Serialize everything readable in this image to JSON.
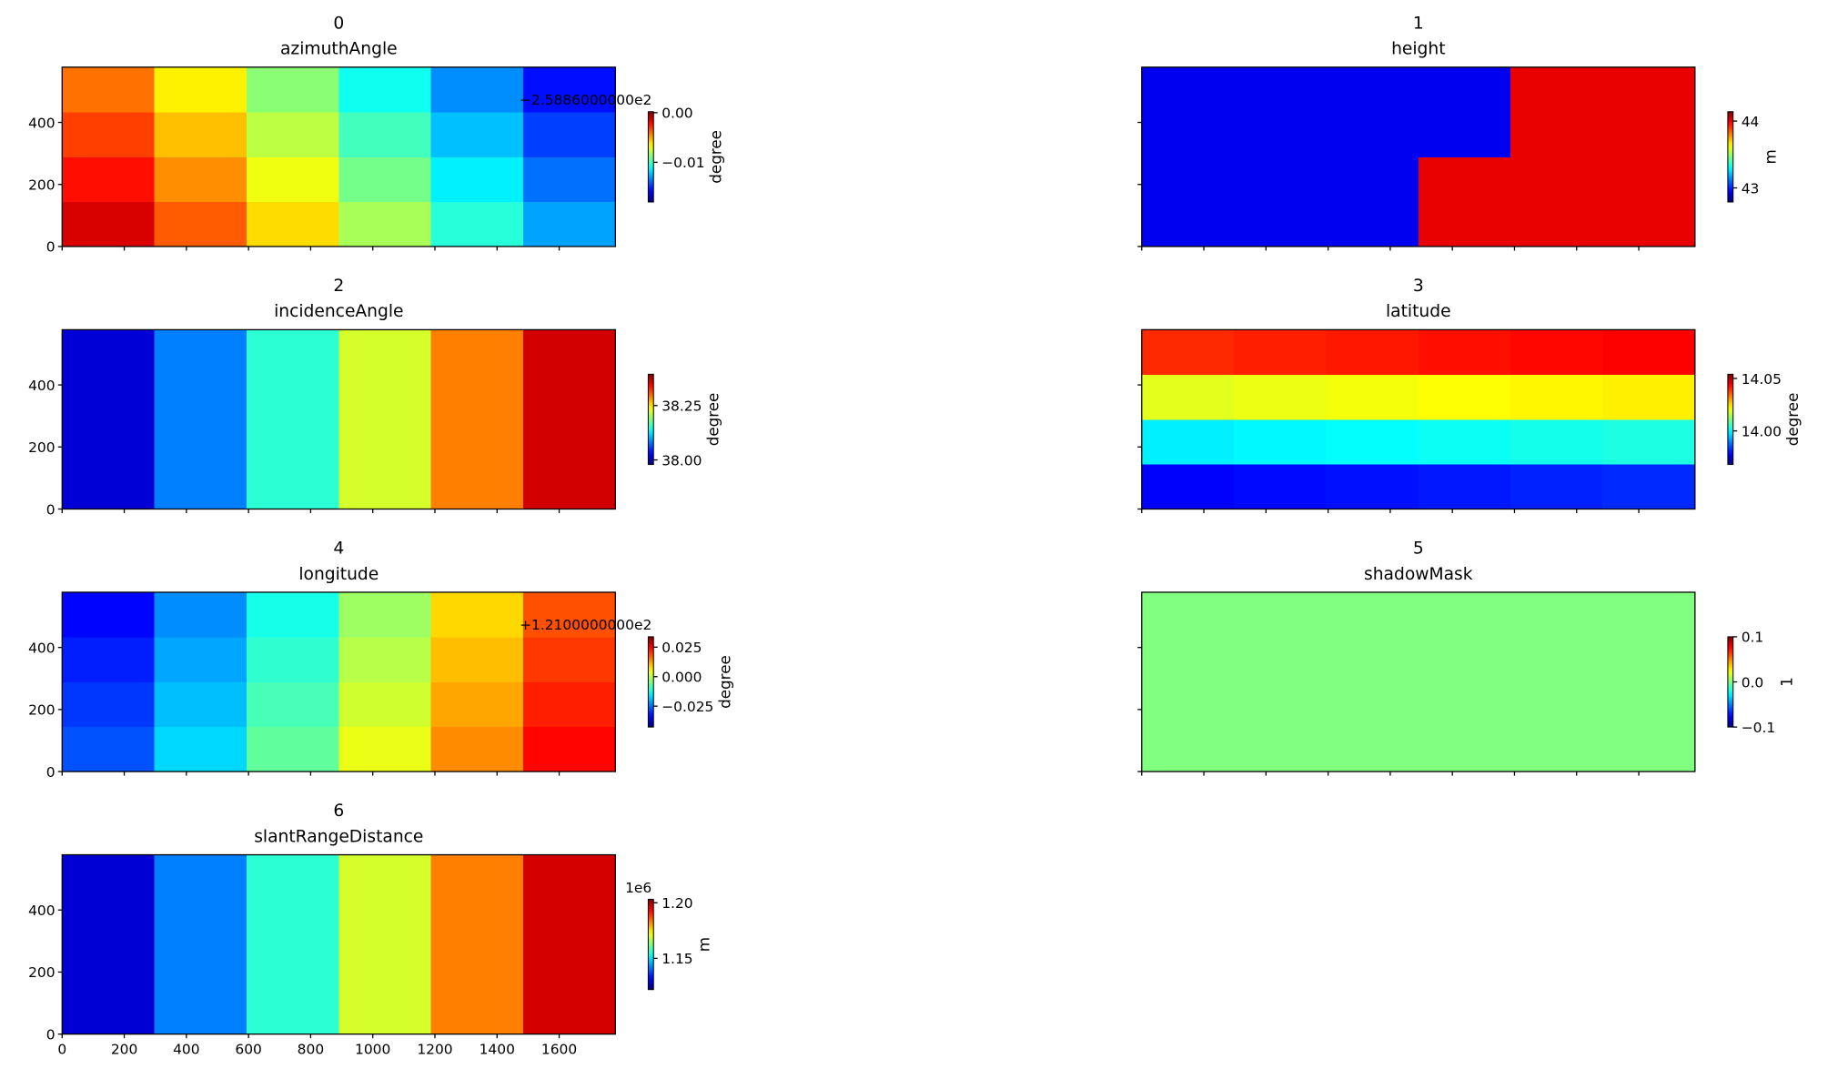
{
  "chart_data": [
    {
      "type": "heatmap",
      "title": "0",
      "subtitle": "azimuthAngle",
      "colormap": "jet",
      "origin": "lower",
      "xlim": [
        0,
        1781
      ],
      "ylim": [
        0,
        578
      ],
      "xticks": [
        0,
        200,
        400,
        600,
        800,
        1000,
        1200,
        1400,
        1600
      ],
      "yticks": [
        0,
        200,
        400
      ],
      "show_xtick_labels": false,
      "show_ytick_labels": true,
      "clim": [
        -0.018,
        0.0002
      ],
      "cticks": [
        {
          "value": 0,
          "label": "0.00"
        },
        {
          "value": -0.01,
          "label": "−0.01"
        }
      ],
      "colorbar_label": "degree",
      "offset_text": "−2.5886000000e2",
      "z": [
        [
          -0.0014,
          -0.0037,
          -0.006,
          -0.0082,
          -0.0105,
          -0.0128
        ],
        [
          -0.0023,
          -0.0046,
          -0.0069,
          -0.0091,
          -0.0114,
          -0.0137
        ],
        [
          -0.0032,
          -0.0055,
          -0.0078,
          -0.01,
          -0.0123,
          -0.0146
        ],
        [
          -0.0041,
          -0.0064,
          -0.0087,
          -0.0109,
          -0.0132,
          -0.0155
        ]
      ]
    },
    {
      "type": "heatmap",
      "title": "1",
      "subtitle": "height",
      "colormap": "jet",
      "origin": "lower",
      "xlim": [
        0,
        1781
      ],
      "ylim": [
        0,
        578
      ],
      "xticks": [
        0,
        200,
        400,
        600,
        800,
        1000,
        1200,
        1400,
        1600
      ],
      "yticks": [
        0,
        200,
        400
      ],
      "show_xtick_labels": false,
      "show_ytick_labels": false,
      "clim": [
        42.79,
        44.14
      ],
      "cticks": [
        44,
        43
      ],
      "colorbar_label": "m",
      "z": [
        [
          42.94,
          42.94,
          42.94,
          44.0,
          44.0,
          44.0
        ],
        [
          42.94,
          42.94,
          42.94,
          44.0,
          44.0,
          44.0
        ],
        [
          42.94,
          42.94,
          42.94,
          42.94,
          44.0,
          44.0
        ],
        [
          42.94,
          42.94,
          42.94,
          42.94,
          44.0,
          44.0
        ]
      ]
    },
    {
      "type": "heatmap",
      "title": "2",
      "subtitle": "incidenceAngle",
      "colormap": "jet",
      "origin": "lower",
      "xlim": [
        0,
        1781
      ],
      "ylim": [
        0,
        578
      ],
      "xticks": [
        0,
        200,
        400,
        600,
        800,
        1000,
        1200,
        1400,
        1600
      ],
      "yticks": [
        0,
        200,
        400
      ],
      "show_xtick_labels": false,
      "show_ytick_labels": true,
      "clim": [
        37.979,
        38.394
      ],
      "cticks": [
        38.25,
        {
          "value": 38,
          "label": "38.00"
        }
      ],
      "colorbar_label": "degree",
      "z": [
        [
          38.014,
          38.083,
          38.152,
          38.221,
          38.29,
          38.36
        ],
        [
          38.014,
          38.083,
          38.152,
          38.221,
          38.29,
          38.36
        ],
        [
          38.014,
          38.083,
          38.152,
          38.221,
          38.29,
          38.36
        ],
        [
          38.014,
          38.083,
          38.152,
          38.221,
          38.29,
          38.36
        ]
      ]
    },
    {
      "type": "heatmap",
      "title": "3",
      "subtitle": "latitude",
      "colormap": "jet",
      "origin": "lower",
      "xlim": [
        0,
        1781
      ],
      "ylim": [
        0,
        578
      ],
      "xticks": [
        0,
        200,
        400,
        600,
        800,
        1000,
        1200,
        1400,
        1600
      ],
      "yticks": [
        0,
        200,
        400
      ],
      "show_xtick_labels": false,
      "show_ytick_labels": false,
      "clim": [
        13.968,
        14.054
      ],
      "cticks": [
        14.05,
        {
          "value": 14,
          "label": "14.00"
        }
      ],
      "colorbar_label": "degree",
      "z": [
        [
          13.9786,
          13.9794,
          13.98,
          13.9807,
          13.9815,
          13.9822
        ],
        [
          13.999,
          13.9997,
          14.0004,
          14.0011,
          14.0019,
          14.0026
        ],
        [
          14.0194,
          14.0202,
          14.0209,
          14.0216,
          14.0224,
          14.023
        ],
        [
          14.0398,
          14.0406,
          14.0413,
          14.042,
          14.0427,
          14.0434
        ]
      ]
    },
    {
      "type": "heatmap",
      "title": "4",
      "subtitle": "longitude",
      "colormap": "jet",
      "origin": "lower",
      "xlim": [
        0,
        1781
      ],
      "ylim": [
        0,
        578
      ],
      "xticks": [
        0,
        200,
        400,
        600,
        800,
        1000,
        1200,
        1400,
        1600
      ],
      "yticks": [
        0,
        200,
        400
      ],
      "show_xtick_labels": false,
      "show_ytick_labels": true,
      "clim": [
        -0.0427,
        0.0338
      ],
      "cticks": [
        0.025,
        {
          "value": 0,
          "label": "0.000"
        },
        {
          "value": -0.025,
          "label": "−0.025"
        }
      ],
      "colorbar_label": "degree",
      "offset_text": "+1.2100000000e2",
      "z": [
        [
          -0.0271,
          -0.0169,
          -0.0067,
          0.0035,
          0.0137,
          0.0239
        ],
        [
          -0.029,
          -0.0188,
          -0.0086,
          0.0016,
          0.0118,
          0.022
        ],
        [
          -0.0309,
          -0.0207,
          -0.0105,
          -0.0003,
          0.0099,
          0.0201
        ],
        [
          -0.0328,
          -0.0226,
          -0.0124,
          -0.0022,
          0.008,
          0.0182
        ]
      ]
    },
    {
      "type": "heatmap",
      "title": "5",
      "subtitle": "shadowMask",
      "colormap": "jet",
      "origin": "lower",
      "xlim": [
        0,
        1781
      ],
      "ylim": [
        0,
        578
      ],
      "xticks": [
        0,
        200,
        400,
        600,
        800,
        1000,
        1200,
        1400,
        1600
      ],
      "yticks": [
        0,
        200,
        400
      ],
      "show_xtick_labels": false,
      "show_ytick_labels": false,
      "clim": [
        -0.1,
        0.1
      ],
      "cticks": [
        0.1,
        {
          "value": 0,
          "label": "0.0"
        },
        {
          "value": -0.1,
          "label": "−0.1"
        }
      ],
      "colorbar_label": "1",
      "z": [
        [
          0,
          0,
          0,
          0,
          0,
          0
        ],
        [
          0,
          0,
          0,
          0,
          0,
          0
        ],
        [
          0,
          0,
          0,
          0,
          0,
          0
        ],
        [
          0,
          0,
          0,
          0,
          0,
          0
        ]
      ]
    },
    {
      "type": "heatmap",
      "title": "6",
      "subtitle": "slantRangeDistance",
      "colormap": "jet",
      "origin": "lower",
      "xlim": [
        0,
        1781
      ],
      "ylim": [
        0,
        578
      ],
      "xticks": [
        0,
        200,
        400,
        600,
        800,
        1000,
        1200,
        1400,
        1600
      ],
      "yticks": [
        0,
        200,
        400
      ],
      "show_xtick_labels": true,
      "show_ytick_labels": true,
      "clim": [
        1.1219,
        1.2031
      ],
      "cticks": [
        {
          "value": 1.2,
          "label": "1.20"
        },
        1.15
      ],
      "colorbar_label": "m",
      "offset_text": "1e6",
      "z": [
        [
          1.1287,
          1.1422,
          1.1558,
          1.1692,
          1.1828,
          1.1964
        ],
        [
          1.1287,
          1.1422,
          1.1558,
          1.1692,
          1.1828,
          1.1964
        ],
        [
          1.1287,
          1.1422,
          1.1558,
          1.1692,
          1.1828,
          1.1964
        ],
        [
          1.1287,
          1.1422,
          1.1558,
          1.1692,
          1.1828,
          1.1964
        ]
      ]
    }
  ]
}
